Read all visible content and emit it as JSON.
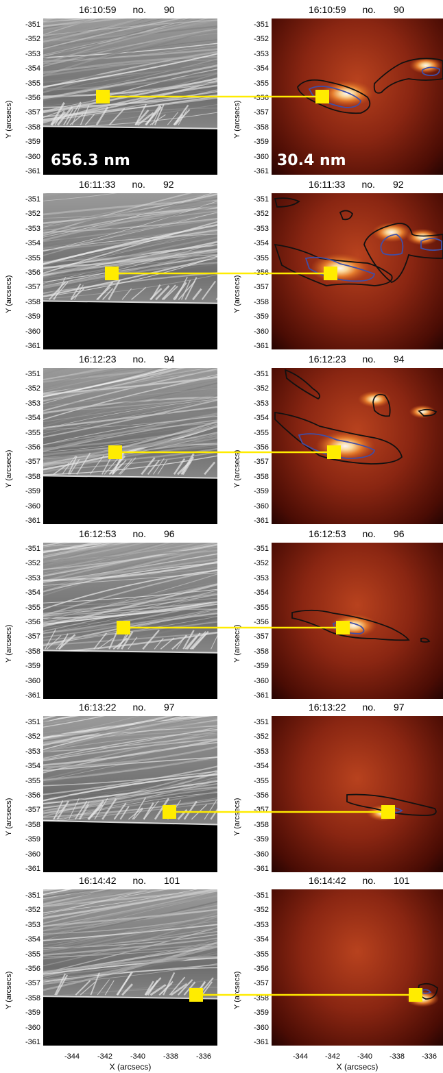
{
  "colors": {
    "marker": "#ffec00",
    "contour_outer": "#111111",
    "contour_inner": "#3f4fa8"
  },
  "y_axis_label": "Y (arcsecs)",
  "x_axis_label": "X (arcsecs)",
  "y_ticks": [
    "-351",
    "-352",
    "-353",
    "-354",
    "-355",
    "-356",
    "-357",
    "-358",
    "-359",
    "-360",
    "-361"
  ],
  "x_ticks": [
    "-344",
    "-342",
    "-340",
    "-338",
    "-336"
  ],
  "wavelength_labels": {
    "left": "656.3 nm",
    "right": "30.4 nm"
  },
  "rows": [
    {
      "time": "16:10:59",
      "no_label": "no.",
      "frame": "90"
    },
    {
      "time": "16:11:33",
      "no_label": "no.",
      "frame": "92"
    },
    {
      "time": "16:12:23",
      "no_label": "no.",
      "frame": "94"
    },
    {
      "time": "16:12:53",
      "no_label": "no.",
      "frame": "96"
    },
    {
      "time": "16:13:22",
      "no_label": "no.",
      "frame": "97"
    },
    {
      "time": "16:14:42",
      "no_label": "no.",
      "frame": "101"
    }
  ]
}
